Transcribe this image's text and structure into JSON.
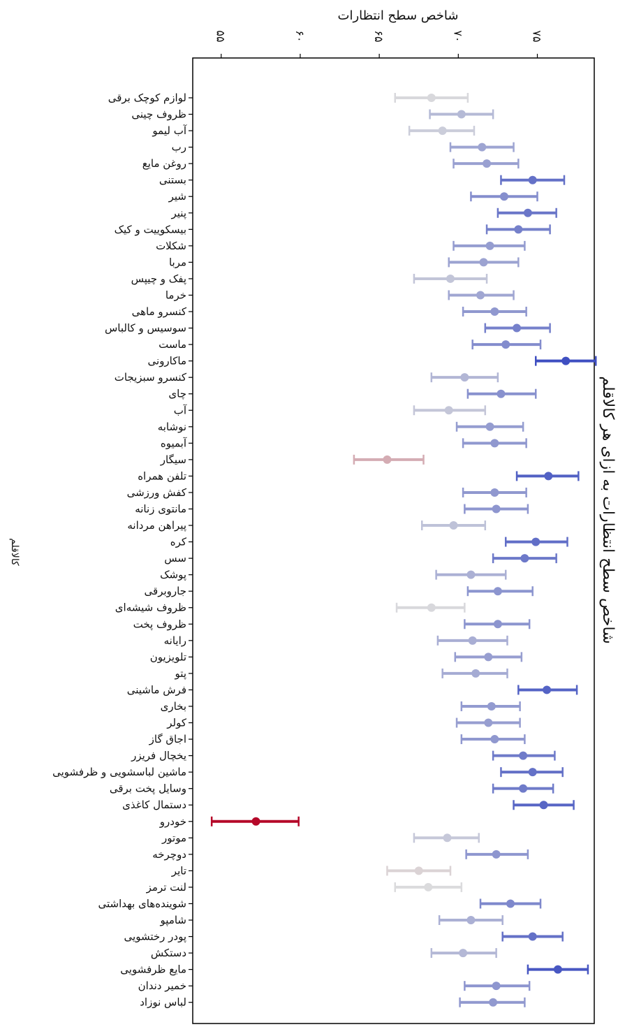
{
  "chart_data": {
    "type": "errorbar",
    "title": "شاخص سطح انتظارات به ازای هر کالاقلم",
    "xlabel": "شاخص سطح انتظارات",
    "ylabel": "کالاقلم",
    "xlim": [
      53.2,
      78.6
    ],
    "xticks": [
      55,
      60,
      65,
      70,
      75
    ],
    "xtick_labels": [
      "۵۵",
      "۶۰",
      "۶۵",
      "۷۰",
      "۷۵"
    ],
    "grid": false,
    "legend": "none",
    "color_scale": {
      "low": "#b40426",
      "mid": "#dddddd",
      "high": "#3b4cc0"
    },
    "points": [
      {
        "category": "لوازم کوچک برقی",
        "value": 68.3,
        "low": 66.0,
        "high": 70.6
      },
      {
        "category": "ظروف چینی",
        "value": 70.2,
        "low": 68.2,
        "high": 72.2
      },
      {
        "category": "آب لیمو",
        "value": 69.0,
        "low": 66.9,
        "high": 71.0
      },
      {
        "category": "رب",
        "value": 71.5,
        "low": 69.5,
        "high": 73.5
      },
      {
        "category": "روغن مایع",
        "value": 71.8,
        "low": 69.7,
        "high": 73.8
      },
      {
        "category": "بستنی",
        "value": 74.7,
        "low": 72.7,
        "high": 76.7
      },
      {
        "category": "شیر",
        "value": 72.9,
        "low": 70.8,
        "high": 75.0
      },
      {
        "category": "پنیر",
        "value": 74.4,
        "low": 72.5,
        "high": 76.2
      },
      {
        "category": "بیسکوییت و کیک",
        "value": 73.8,
        "low": 71.8,
        "high": 75.8
      },
      {
        "category": "شکلات",
        "value": 72.0,
        "low": 69.7,
        "high": 74.2
      },
      {
        "category": "مربا",
        "value": 71.6,
        "low": 69.4,
        "high": 73.8
      },
      {
        "category": "پفک و چیپس",
        "value": 69.5,
        "low": 67.2,
        "high": 71.8
      },
      {
        "category": "خرما",
        "value": 71.4,
        "low": 69.4,
        "high": 73.5
      },
      {
        "category": "کنسرو ماهی",
        "value": 72.3,
        "low": 70.3,
        "high": 74.3
      },
      {
        "category": "سوسیس و کالباس",
        "value": 73.7,
        "low": 71.7,
        "high": 75.8
      },
      {
        "category": "ماست",
        "value": 73.0,
        "low": 70.9,
        "high": 75.2
      },
      {
        "category": "ماکارونی",
        "value": 76.8,
        "low": 74.9,
        "high": 78.7
      },
      {
        "category": "کنسرو سبزیجات",
        "value": 70.4,
        "low": 68.3,
        "high": 72.5
      },
      {
        "category": "چای",
        "value": 72.7,
        "low": 70.6,
        "high": 74.9
      },
      {
        "category": "آب",
        "value": 69.4,
        "low": 67.2,
        "high": 71.7
      },
      {
        "category": "نوشابه",
        "value": 72.0,
        "low": 69.9,
        "high": 74.1
      },
      {
        "category": "آبمیوه",
        "value": 72.3,
        "low": 70.3,
        "high": 74.3
      },
      {
        "category": "سیگار",
        "value": 65.5,
        "low": 63.4,
        "high": 67.8
      },
      {
        "category": "تلفن همراه",
        "value": 75.7,
        "low": 73.7,
        "high": 77.6
      },
      {
        "category": "کفش ورزشی",
        "value": 72.3,
        "low": 70.3,
        "high": 74.3
      },
      {
        "category": "مانتوی زنانه",
        "value": 72.4,
        "low": 70.4,
        "high": 74.4
      },
      {
        "category": "پیراهن مردانه",
        "value": 69.7,
        "low": 67.7,
        "high": 71.7
      },
      {
        "category": "کره",
        "value": 74.9,
        "low": 73.0,
        "high": 76.9
      },
      {
        "category": "سس",
        "value": 74.2,
        "low": 72.2,
        "high": 76.2
      },
      {
        "category": "پوشک",
        "value": 70.8,
        "low": 68.6,
        "high": 73.0
      },
      {
        "category": "جاروبرقی",
        "value": 72.5,
        "low": 70.6,
        "high": 74.7
      },
      {
        "category": "ظروف شیشه‌ای",
        "value": 68.3,
        "low": 66.1,
        "high": 70.4
      },
      {
        "category": "ظروف پخت",
        "value": 72.5,
        "low": 70.4,
        "high": 74.5
      },
      {
        "category": "رایانه",
        "value": 70.9,
        "low": 68.7,
        "high": 73.1
      },
      {
        "category": "تلویزیون",
        "value": 71.9,
        "low": 69.8,
        "high": 74.0
      },
      {
        "category": "پتو",
        "value": 71.1,
        "low": 69.0,
        "high": 73.1
      },
      {
        "category": "فرش ماشینی",
        "value": 75.6,
        "low": 73.8,
        "high": 77.5
      },
      {
        "category": "بخاری",
        "value": 72.1,
        "low": 70.2,
        "high": 73.9
      },
      {
        "category": "کولر",
        "value": 71.9,
        "low": 69.9,
        "high": 73.9
      },
      {
        "category": "اجاق گاز",
        "value": 72.3,
        "low": 70.2,
        "high": 74.2
      },
      {
        "category": "یخچال فریزر",
        "value": 74.1,
        "low": 72.2,
        "high": 76.1
      },
      {
        "category": "ماشین لباسشویی و ظرفشویی",
        "value": 74.7,
        "low": 72.7,
        "high": 76.6
      },
      {
        "category": "وسایل پخت برقی",
        "value": 74.1,
        "low": 72.2,
        "high": 76.0
      },
      {
        "category": "دستمال کاغذی",
        "value": 75.4,
        "low": 73.5,
        "high": 77.3
      },
      {
        "category": "خودرو",
        "value": 57.2,
        "low": 54.4,
        "high": 59.9
      },
      {
        "category": "موتور",
        "value": 69.3,
        "low": 67.2,
        "high": 71.3
      },
      {
        "category": "دوچرخه",
        "value": 72.4,
        "low": 70.5,
        "high": 74.4
      },
      {
        "category": "تایر",
        "value": 67.5,
        "low": 65.5,
        "high": 69.5
      },
      {
        "category": "لنت ترمز",
        "value": 68.1,
        "low": 66.0,
        "high": 70.2
      },
      {
        "category": "شوینده‌های بهداشتی",
        "value": 73.3,
        "low": 71.4,
        "high": 75.2
      },
      {
        "category": "شامپو",
        "value": 70.8,
        "low": 68.8,
        "high": 72.8
      },
      {
        "category": "پودر رختشویی",
        "value": 74.7,
        "low": 72.8,
        "high": 76.6
      },
      {
        "category": "دستکش",
        "value": 70.3,
        "low": 68.3,
        "high": 72.4
      },
      {
        "category": "مایع ظرفشویی",
        "value": 76.3,
        "low": 74.4,
        "high": 78.2
      },
      {
        "category": "خمیر دندان",
        "value": 72.4,
        "low": 70.4,
        "high": 74.5
      },
      {
        "category": "لباس نوزاد",
        "value": 72.2,
        "low": 70.1,
        "high": 74.2
      }
    ]
  }
}
